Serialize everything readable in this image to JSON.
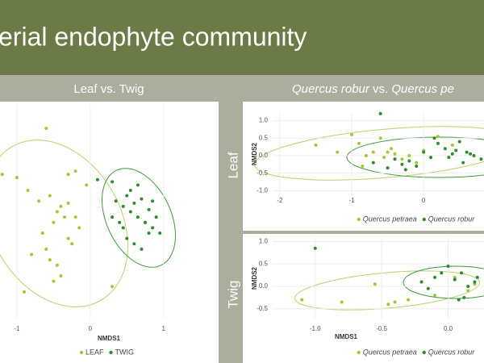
{
  "slide": {
    "title": "erial endophyte community",
    "left_header": "Leaf vs. Twig",
    "right_header": [
      "Quercus robur",
      " vs. ",
      "Quercus pe"
    ],
    "row_labels": [
      "Leaf",
      "Twig"
    ]
  },
  "chart_data": [
    {
      "type": "scatter",
      "x_label": "NMDS1",
      "xlim": [
        -1.23,
        1.74
      ],
      "xticks": [
        -1,
        0,
        1
      ],
      "ylim": [
        -1,
        1
      ],
      "grid": true,
      "series": [
        {
          "name": "LEAF",
          "color": "#a4c639",
          "x": [
            -0.6,
            -0.2,
            -0.3,
            -1.0,
            -0.85,
            -0.7,
            -0.55,
            -0.4,
            -0.45,
            -0.35,
            -0.5,
            -0.65,
            -0.3,
            -0.25,
            -0.15,
            -0.6,
            -0.8,
            -0.9,
            -0.5,
            -0.45,
            -0.4,
            -0.3,
            -0.2,
            -0.55,
            0.3,
            -1.2,
            -0.05
          ],
          "values": [
            0.78,
            0.38,
            0.35,
            0.32,
            0.2,
            0.1,
            0.15,
            0.05,
            0.0,
            -0.05,
            -0.1,
            -0.2,
            -0.25,
            -0.3,
            -0.15,
            -0.35,
            -0.4,
            -0.75,
            -0.65,
            -0.5,
            -0.6,
            0.08,
            -0.05,
            -0.45,
            -0.7,
            0.35,
            0.25
          ]
        },
        {
          "name": "TWIG",
          "color": "#2e8b2e",
          "x": [
            0.3,
            0.35,
            0.45,
            0.5,
            0.55,
            0.6,
            0.65,
            0.7,
            0.75,
            0.8,
            0.85,
            0.9,
            0.95,
            0.4,
            0.5,
            0.6,
            0.7,
            0.8,
            0.55,
            0.65,
            0.75,
            0.85,
            0.45,
            0.1,
            0.3
          ],
          "values": [
            0.28,
            0.1,
            0.05,
            0.15,
            0.0,
            0.08,
            -0.05,
            0.12,
            -0.1,
            0.02,
            -0.15,
            -0.05,
            -0.2,
            -0.1,
            -0.25,
            -0.3,
            -0.35,
            -0.2,
            0.2,
            0.25,
            -0.1,
            0.1,
            -0.15,
            0.3,
            -0.05
          ]
        }
      ]
    },
    {
      "type": "scatter",
      "y_label": "NMDS2",
      "xlim": [
        -2.1,
        0.84
      ],
      "xticks": [
        -2,
        -1,
        0
      ],
      "ylim": [
        -1.13,
        1.22
      ],
      "yticks": [
        {
          "value": 1,
          "label": "1.0"
        },
        0.5,
        {
          "value": 0,
          "label": "0.0"
        },
        -0.5,
        {
          "value": -1,
          "label": "-1.0"
        }
      ],
      "grid": true,
      "series": [
        {
          "name": "Quercus petraea",
          "color": "#a4c639",
          "x": [
            -1.5,
            -1.2,
            -1.0,
            -0.9,
            -0.8,
            -0.7,
            -0.6,
            -0.5,
            -0.4,
            -0.3,
            -0.2,
            -0.1,
            0.0,
            0.2,
            0.4,
            -0.85,
            -0.55,
            -0.45
          ],
          "values": [
            0.3,
            0.1,
            0.6,
            0.35,
            0.0,
            0.1,
            0.5,
            0.1,
            0.05,
            -0.1,
            0.0,
            -0.2,
            0.15,
            0.55,
            0.3,
            -0.3,
            -0.05,
            0.2
          ]
        },
        {
          "name": "Quercus robur",
          "color": "#2e8b2e",
          "x": [
            -0.6,
            -0.7,
            -0.5,
            -0.4,
            -0.3,
            -0.2,
            -0.1,
            0.0,
            0.1,
            0.2,
            0.3,
            0.4,
            0.5,
            0.6,
            0.7,
            0.8,
            0.35,
            0.45,
            0.55,
            0.65,
            -0.25,
            0.15
          ],
          "values": [
            1.2,
            -0.2,
            -0.35,
            -0.1,
            -0.25,
            -0.15,
            -0.3,
            0.1,
            -0.05,
            0.35,
            0.2,
            0.05,
            0.4,
            0.1,
            0.0,
            -0.1,
            -0.05,
            0.15,
            -0.2,
            0.05,
            -0.4,
            0.5
          ]
        }
      ]
    },
    {
      "type": "scatter",
      "x_label": "NMDS1",
      "y_label": "NMDS2",
      "xlim": [
        -1.32,
        0.27
      ],
      "xticks": [
        {
          "value": -1,
          "label": "-1.0"
        },
        -0.5,
        {
          "value": 0,
          "label": "0.0"
        }
      ],
      "ylim": [
        -0.72,
        1.08
      ],
      "yticks": [
        {
          "value": 1,
          "label": "1.0"
        },
        0.5,
        {
          "value": 0,
          "label": "0.0"
        },
        -0.5
      ],
      "grid": true,
      "series": [
        {
          "name": "Quercus petraea",
          "color": "#a4c639",
          "x": [
            -1.1,
            -0.8,
            -0.55,
            -0.45,
            -0.3,
            -0.1,
            0.05,
            0.15,
            0.2,
            -0.4
          ],
          "values": [
            -0.3,
            -0.35,
            0.05,
            -0.4,
            -0.3,
            -0.2,
            0.2,
            -0.1,
            0.05,
            -0.35
          ]
        },
        {
          "name": "Quercus robur",
          "color": "#2e8b2e",
          "x": [
            -1.0,
            -0.2,
            -0.1,
            -0.05,
            0.0,
            0.05,
            0.1,
            0.15,
            0.2,
            -0.15,
            0.12,
            0.22,
            0.08
          ],
          "values": [
            0.85,
            0.1,
            0.2,
            0.3,
            0.45,
            0.15,
            0.3,
            0.0,
            0.1,
            -0.05,
            -0.25,
            0.2,
            -0.3
          ]
        }
      ]
    }
  ]
}
